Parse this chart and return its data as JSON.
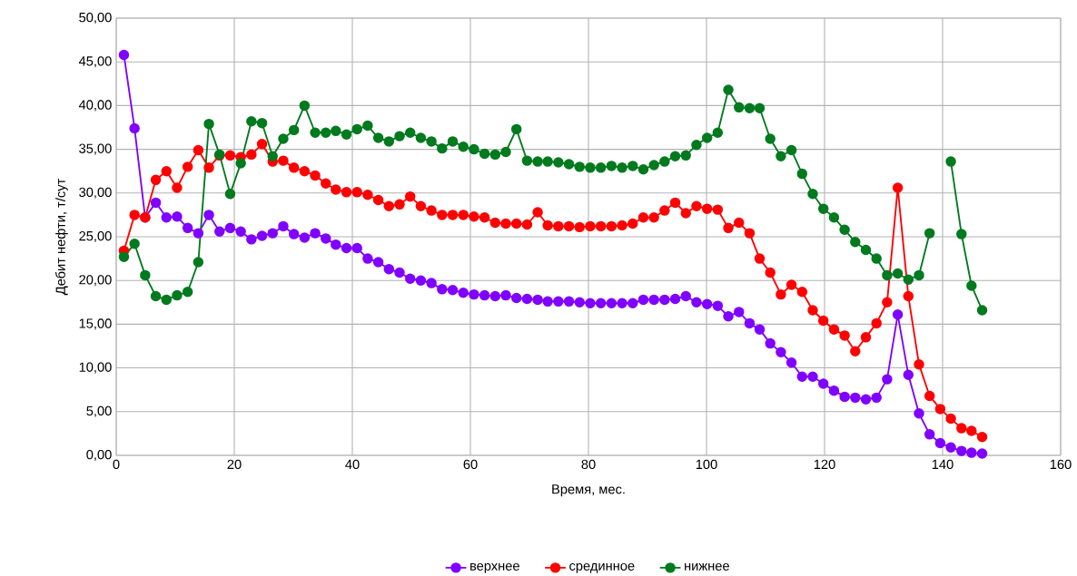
{
  "chart_data": {
    "type": "line",
    "xlabel": "Время, мес.",
    "ylabel": "Дебит нефти, т/сут",
    "x": [
      1.3,
      3.1,
      4.9,
      6.7,
      8.5,
      10.3,
      12.1,
      13.9,
      15.7,
      17.5,
      19.3,
      21.1,
      22.9,
      24.7,
      26.5,
      28.3,
      30.1,
      31.9,
      33.7,
      35.5,
      37.2,
      39.0,
      40.8,
      42.6,
      44.4,
      46.2,
      48.0,
      49.8,
      51.6,
      53.4,
      55.2,
      57.0,
      58.8,
      60.6,
      62.4,
      64.2,
      66.0,
      67.8,
      69.6,
      71.4,
      73.1,
      74.9,
      76.7,
      78.5,
      80.3,
      82.1,
      83.9,
      85.7,
      87.5,
      89.3,
      91.1,
      92.9,
      94.7,
      96.5,
      98.3,
      100.1,
      101.9,
      103.7,
      105.5,
      107.3,
      109.0,
      110.8,
      112.6,
      114.4,
      116.2,
      118.0,
      119.8,
      121.6,
      123.4,
      125.2,
      127.0,
      128.8,
      130.6,
      132.4,
      134.2,
      136.0,
      137.8,
      139.6,
      141.4,
      143.2,
      144.9,
      146.7
    ],
    "series": [
      {
        "name": "верхнее",
        "color": "#8000ff",
        "values": [
          45.8,
          37.4,
          27.2,
          28.9,
          27.2,
          27.3,
          26.0,
          25.4,
          27.5,
          25.6,
          26.0,
          25.6,
          24.7,
          25.1,
          25.4,
          26.2,
          25.3,
          24.9,
          25.4,
          24.8,
          24.1,
          23.7,
          23.7,
          22.5,
          22.1,
          21.3,
          20.9,
          20.2,
          20.0,
          19.7,
          19.0,
          18.9,
          18.6,
          18.4,
          18.3,
          18.2,
          18.3,
          18.0,
          17.9,
          17.8,
          17.6,
          17.6,
          17.6,
          17.5,
          17.4,
          17.4,
          17.4,
          17.4,
          17.4,
          17.8,
          17.8,
          17.8,
          17.9,
          18.2,
          17.5,
          17.3,
          17.1,
          15.9,
          16.4,
          15.1,
          14.4,
          12.8,
          11.8,
          10.6,
          9.0,
          9.0,
          8.2,
          7.4,
          6.7,
          6.6,
          6.4,
          6.6,
          8.7,
          16.1,
          9.2,
          4.8,
          2.4,
          1.4,
          0.9,
          0.5,
          0.3,
          0.2
        ]
      },
      {
        "name": "срединное",
        "color": "#ff0000",
        "values": [
          23.4,
          27.5,
          27.2,
          31.5,
          32.5,
          30.6,
          33.0,
          34.9,
          32.9,
          34.3,
          34.3,
          34.1,
          34.4,
          35.6,
          33.6,
          33.7,
          32.9,
          32.5,
          32.0,
          31.1,
          30.4,
          30.1,
          30.1,
          29.8,
          29.2,
          28.5,
          28.7,
          29.6,
          28.5,
          28.0,
          27.5,
          27.5,
          27.5,
          27.3,
          27.2,
          26.6,
          26.5,
          26.5,
          26.4,
          27.8,
          26.3,
          26.2,
          26.2,
          26.1,
          26.2,
          26.2,
          26.2,
          26.3,
          26.5,
          27.2,
          27.2,
          28.0,
          28.9,
          27.7,
          28.5,
          28.2,
          28.1,
          26.0,
          26.6,
          25.4,
          22.5,
          20.9,
          18.4,
          19.5,
          18.7,
          16.6,
          15.4,
          14.4,
          13.7,
          11.9,
          13.5,
          15.1,
          17.5,
          30.6,
          18.2,
          10.4,
          6.8,
          5.3,
          4.2,
          3.1,
          2.8,
          2.1
        ]
      },
      {
        "name": "нижнее",
        "color": "#007a1e",
        "values": [
          22.7,
          24.2,
          20.6,
          18.2,
          17.8,
          18.3,
          18.7,
          22.1,
          37.9,
          34.4,
          29.9,
          33.4,
          38.2,
          38.0,
          34.2,
          36.2,
          37.2,
          40.0,
          36.9,
          36.9,
          37.1,
          36.7,
          37.3,
          37.7,
          36.3,
          35.9,
          36.5,
          36.9,
          36.3,
          35.9,
          35.1,
          35.9,
          35.3,
          35.0,
          34.5,
          34.4,
          34.7,
          37.3,
          33.7,
          33.6,
          33.6,
          33.5,
          33.3,
          33.0,
          32.9,
          32.9,
          33.1,
          32.9,
          33.1,
          32.7,
          33.2,
          33.6,
          34.2,
          34.3,
          35.5,
          36.3,
          36.9,
          41.8,
          39.8,
          39.7,
          39.7,
          36.2,
          34.2,
          34.9,
          32.2,
          29.9,
          28.2,
          27.2,
          25.8,
          24.4,
          23.5,
          22.5,
          20.6,
          20.8,
          20.1,
          20.6,
          25.4,
          null,
          33.6,
          25.3,
          19.4,
          16.6
        ]
      }
    ],
    "xlim": [
      0,
      160
    ],
    "xticks": [
      0,
      20,
      40,
      60,
      80,
      100,
      120,
      140,
      160
    ],
    "ylim": [
      0,
      50
    ],
    "yticks": [
      {
        "value": 0,
        "label": "0,00"
      },
      {
        "value": 5,
        "label": "5,00"
      },
      {
        "value": 10,
        "label": "10,00"
      },
      {
        "value": 15,
        "label": "15,00"
      },
      {
        "value": 20,
        "label": "20,00"
      },
      {
        "value": 25,
        "label": "25,00"
      },
      {
        "value": 30,
        "label": "30,00"
      },
      {
        "value": 35,
        "label": "35,00"
      },
      {
        "value": 40,
        "label": "40,00"
      },
      {
        "value": 45,
        "label": "45,00"
      },
      {
        "value": 50,
        "label": "50,00"
      }
    ],
    "grid": true,
    "legend": "bottom",
    "marker": "circle",
    "line_style": "solid"
  }
}
